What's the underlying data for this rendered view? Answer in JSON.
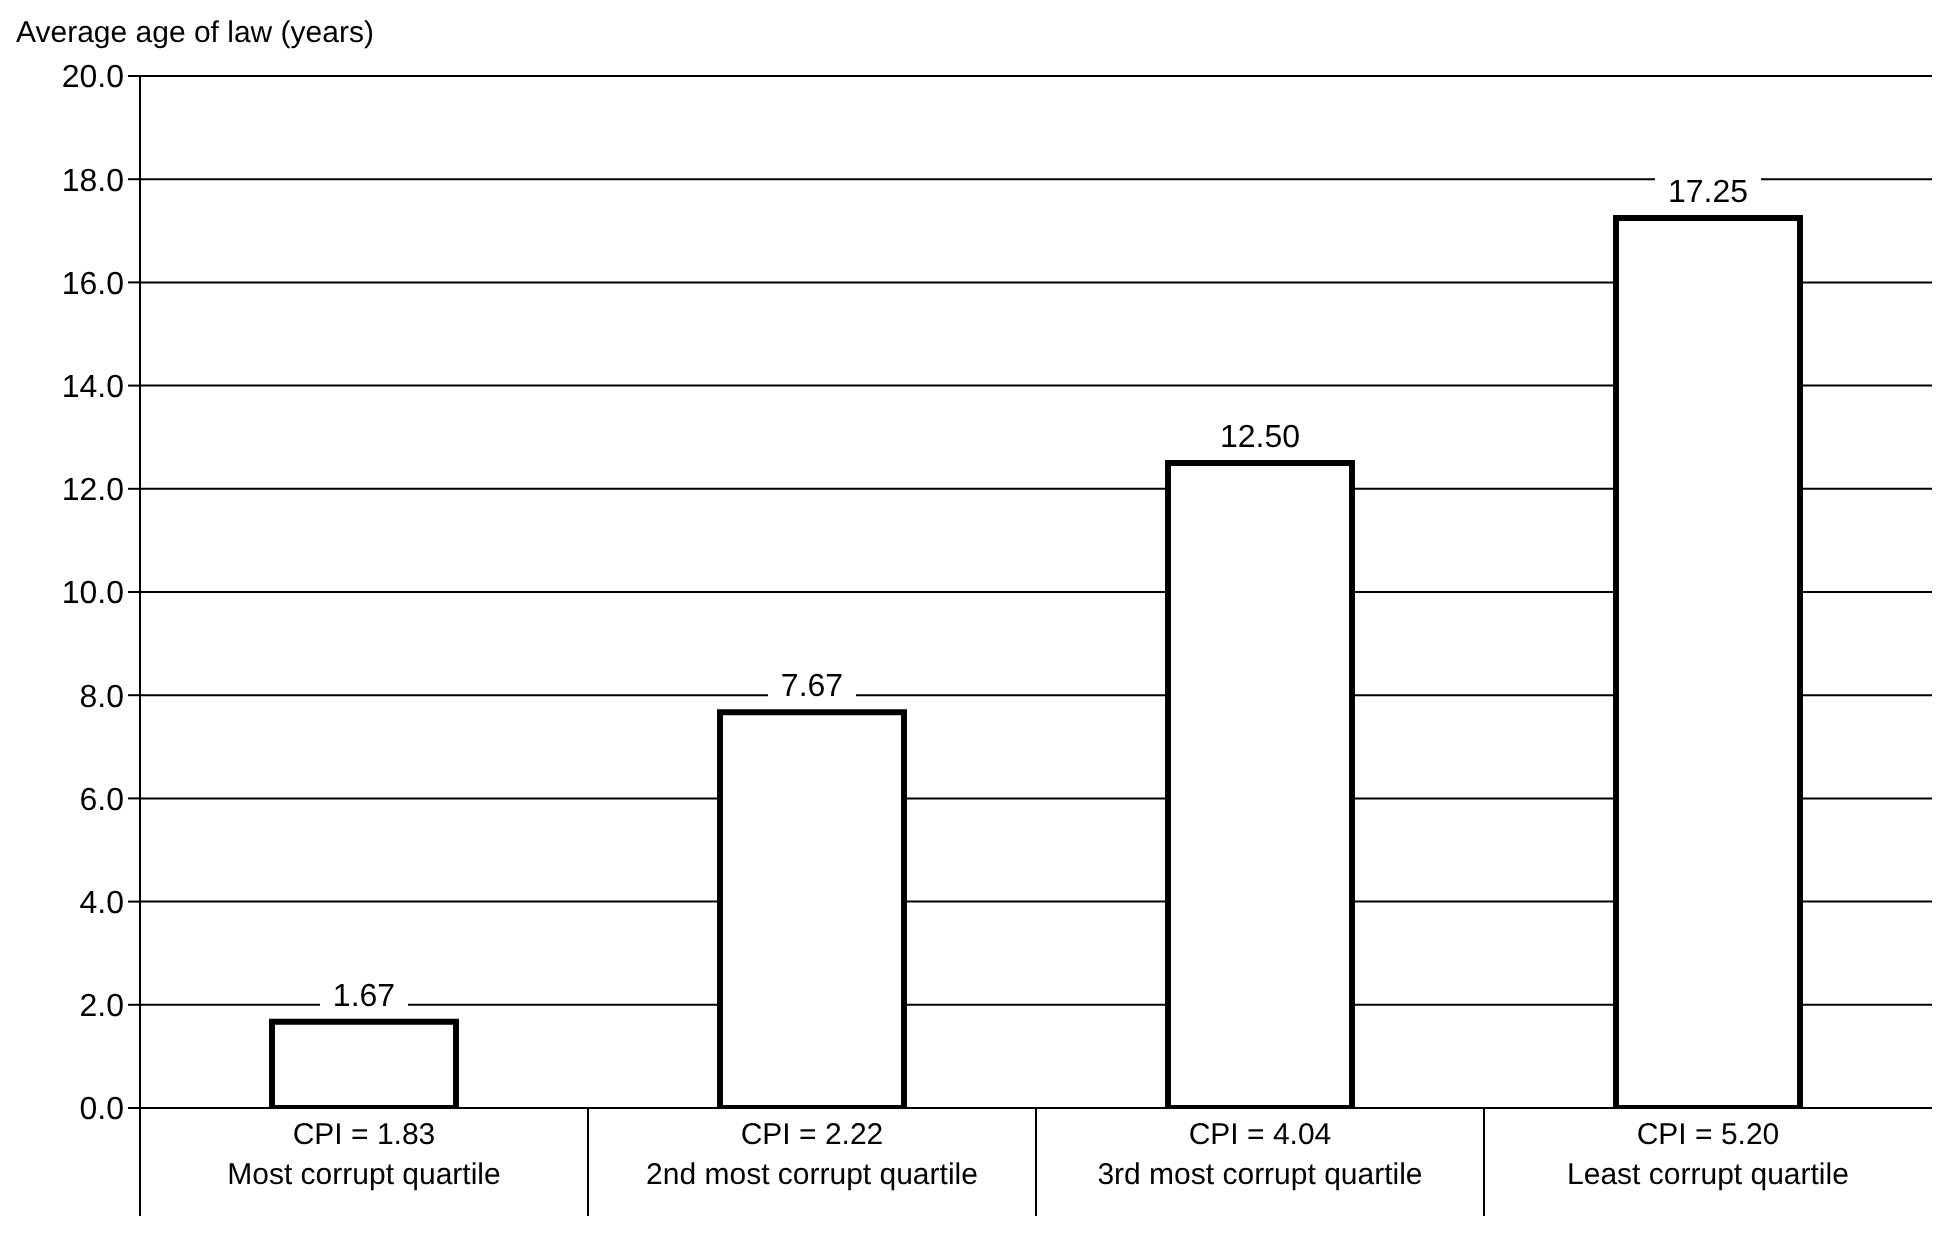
{
  "chart_data": {
    "type": "bar",
    "ylabel": "Average age of law (years)",
    "categories": [
      "CPI = 1.83\nMost corrupt quartile",
      "CPI = 2.22\n2nd most corrupt quartile",
      "CPI = 4.04\n3rd most corrupt quartile",
      "CPI = 5.20\nLeast corrupt quartile"
    ],
    "series": [
      {
        "color": "#ffffff",
        "values": [
          1.67,
          7.67,
          12.5,
          17.25
        ],
        "value_labels": [
          "1.67",
          "7.67",
          "12.50",
          "17.25"
        ]
      }
    ],
    "ylim": [
      0,
      20
    ],
    "yticks": [
      {
        "value": 0,
        "label": "0.0"
      },
      {
        "value": 2,
        "label": "2.0"
      },
      {
        "value": 4,
        "label": "4.0"
      },
      {
        "value": 6,
        "label": "6.0"
      },
      {
        "value": 8,
        "label": "8.0"
      },
      {
        "value": 10,
        "label": "10.0"
      },
      {
        "value": 12,
        "label": "12.0"
      },
      {
        "value": 14,
        "label": "14.0"
      },
      {
        "value": 16,
        "label": "16.0"
      },
      {
        "value": 18,
        "label": "18.0"
      },
      {
        "value": 20,
        "label": "20.0"
      }
    ],
    "grid": "y",
    "legend": false
  }
}
